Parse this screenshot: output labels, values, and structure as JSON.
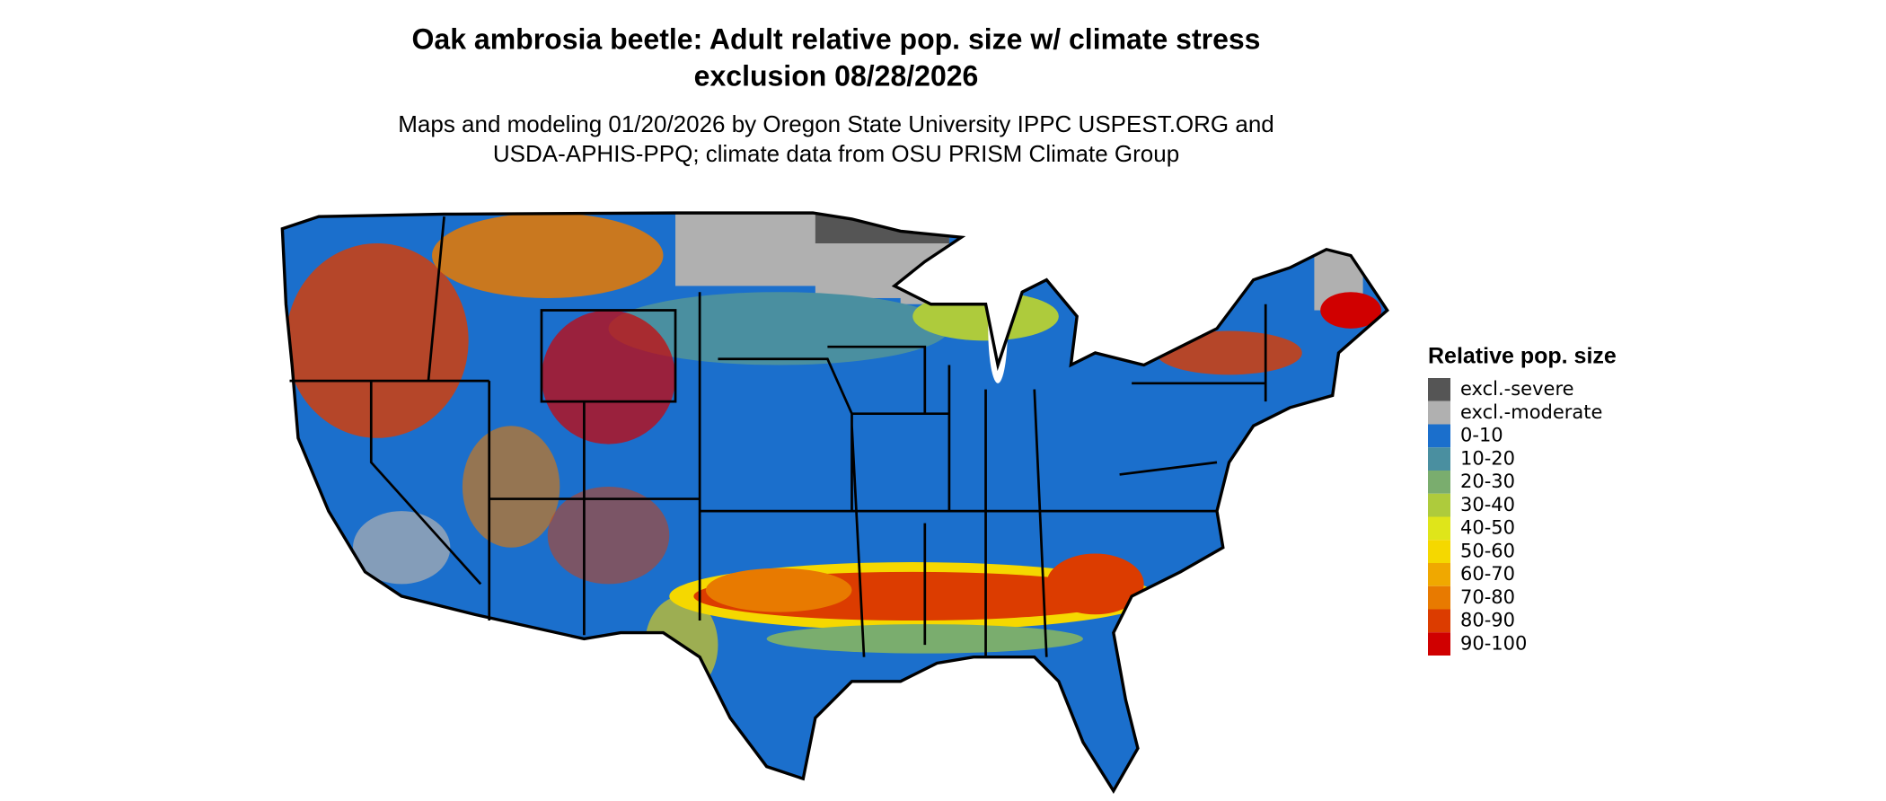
{
  "header": {
    "title": [
      "Oak ambrosia beetle: Adult relative pop. size w/ climate stress",
      "exclusion 08/28/2026"
    ],
    "subtitle": [
      "Maps and modeling 01/20/2026 by Oregon State University IPPC USPEST.ORG and",
      "USDA-APHIS-PPQ; climate data from OSU PRISM Climate Group"
    ]
  },
  "legend": {
    "title": "Relative pop. size",
    "items": [
      {
        "label": "excl.-severe",
        "color": "#555555"
      },
      {
        "label": "excl.-moderate",
        "color": "#b0b0b0"
      },
      {
        "label": "0-10",
        "color": "#1b6fcc"
      },
      {
        "label": "10-20",
        "color": "#4a8fa0"
      },
      {
        "label": "20-30",
        "color": "#7aad6e"
      },
      {
        "label": "30-40",
        "color": "#aecb3c"
      },
      {
        "label": "40-50",
        "color": "#dfe51a"
      },
      {
        "label": "50-60",
        "color": "#f5d800"
      },
      {
        "label": "60-70",
        "color": "#f0a800"
      },
      {
        "label": "70-80",
        "color": "#e87a00"
      },
      {
        "label": "80-90",
        "color": "#dc3c00"
      },
      {
        "label": "90-100",
        "color": "#d00000"
      }
    ]
  }
}
